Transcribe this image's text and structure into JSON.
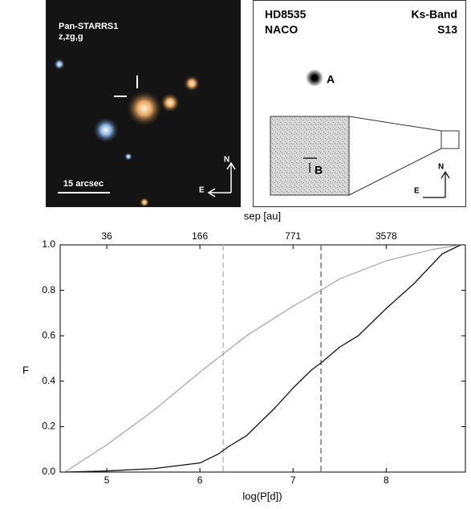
{
  "panels": {
    "left": {
      "survey": "Pan-STARRS1",
      "bands": "z,zg,g",
      "scale": "15 arcsec",
      "north": "N",
      "east": "E"
    },
    "right": {
      "target": "HD8535",
      "instrument": "NACO",
      "band": "Ks-Band",
      "camera": "S13",
      "primary": "A",
      "companion": "B",
      "north": "N",
      "east": "E"
    }
  },
  "chart_data": {
    "type": "line",
    "xlabel": "log(P[d])",
    "ylabel": "F",
    "x2label": "sep [au]",
    "xlim": [
      4.5,
      8.85
    ],
    "ylim": [
      0,
      1
    ],
    "xticks": [
      5,
      6,
      7,
      8
    ],
    "x2ticks": [
      {
        "value": 5,
        "label": "36"
      },
      {
        "value": 6,
        "label": "166"
      },
      {
        "value": 7,
        "label": "771"
      },
      {
        "value": 8,
        "label": "3578"
      }
    ],
    "yticks": [
      {
        "value": 0,
        "label": "0.0"
      },
      0.2,
      0.4,
      0.6,
      0.8,
      {
        "value": 1,
        "label": "1.0"
      }
    ],
    "vlines": [
      {
        "value": 6.25,
        "color": "#bbbbbb"
      },
      {
        "value": 7.3,
        "color": "#777777"
      }
    ],
    "series": [
      {
        "color": "#aaaaaa",
        "x": [
          4.55,
          5,
          5.5,
          6,
          6.25,
          6.5,
          7,
          7.3,
          7.5,
          8,
          8.5,
          8.8
        ],
        "values": [
          0,
          0.12,
          0.27,
          0.44,
          0.52,
          0.6,
          0.73,
          0.8,
          0.85,
          0.93,
          0.98,
          1.0
        ]
      },
      {
        "color": "#111111",
        "x": [
          4.55,
          5,
          5.5,
          6,
          6.2,
          6.3,
          6.5,
          6.8,
          7,
          7.2,
          7.3,
          7.5,
          7.7,
          8,
          8.3,
          8.6,
          8.8
        ],
        "values": [
          0,
          0.005,
          0.015,
          0.04,
          0.08,
          0.11,
          0.16,
          0.28,
          0.37,
          0.45,
          0.48,
          0.55,
          0.6,
          0.72,
          0.83,
          0.96,
          1.0
        ]
      }
    ]
  }
}
